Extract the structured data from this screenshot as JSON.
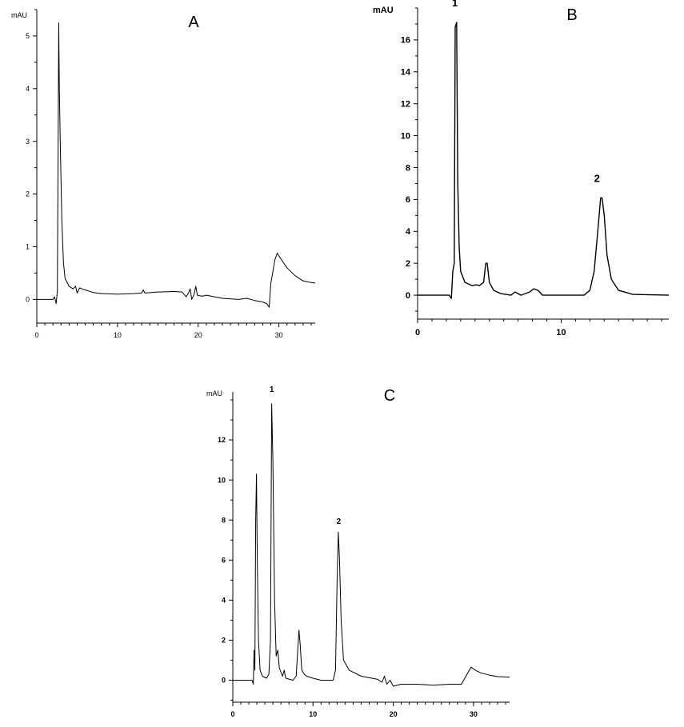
{
  "chart_data": [
    {
      "panel_label": "A",
      "type": "line",
      "ylabel": "mAU",
      "xlim": [
        0,
        34.5
      ],
      "ylim": [
        -0.45,
        5.5
      ],
      "x_ticks": [
        0,
        10,
        20,
        30
      ],
      "y_ticks": [
        0,
        1,
        2,
        3,
        4,
        5
      ],
      "peak_labels": [],
      "series": [
        {
          "points": [
            [
              0,
              0
            ],
            [
              2,
              0
            ],
            [
              2.2,
              0.05
            ],
            [
              2.4,
              -0.08
            ],
            [
              2.55,
              0.15
            ],
            [
              2.65,
              3.0
            ],
            [
              2.72,
              5.25
            ],
            [
              2.8,
              4.0
            ],
            [
              2.9,
              3.0
            ],
            [
              3.1,
              1.5
            ],
            [
              3.3,
              0.7
            ],
            [
              3.5,
              0.4
            ],
            [
              4.0,
              0.25
            ],
            [
              4.5,
              0.2
            ],
            [
              4.8,
              0.25
            ],
            [
              5.0,
              0.12
            ],
            [
              5.3,
              0.22
            ],
            [
              5.6,
              0.2
            ],
            [
              6,
              0.18
            ],
            [
              7,
              0.13
            ],
            [
              8,
              0.11
            ],
            [
              10,
              0.1
            ],
            [
              12,
              0.11
            ],
            [
              13,
              0.12
            ],
            [
              13.2,
              0.18
            ],
            [
              13.4,
              0.12
            ],
            [
              15,
              0.14
            ],
            [
              17,
              0.15
            ],
            [
              18,
              0.14
            ],
            [
              18.5,
              0.05
            ],
            [
              18.8,
              0.12
            ],
            [
              19,
              0.2
            ],
            [
              19.2,
              0.0
            ],
            [
              19.5,
              0.1
            ],
            [
              19.7,
              0.25
            ],
            [
              19.9,
              0.08
            ],
            [
              20.5,
              0.06
            ],
            [
              21,
              0.08
            ],
            [
              23,
              0.02
            ],
            [
              25,
              0.0
            ],
            [
              26,
              0.02
            ],
            [
              27,
              -0.02
            ],
            [
              28,
              -0.05
            ],
            [
              28.5,
              -0.08
            ],
            [
              28.8,
              -0.15
            ],
            [
              29.0,
              0.3
            ],
            [
              29.5,
              0.75
            ],
            [
              29.8,
              0.88
            ],
            [
              30.2,
              0.78
            ],
            [
              31,
              0.6
            ],
            [
              32,
              0.45
            ],
            [
              33,
              0.35
            ],
            [
              34,
              0.32
            ],
            [
              34.5,
              0.31
            ]
          ]
        }
      ]
    },
    {
      "panel_label": "B",
      "type": "line",
      "ylabel": "mAU",
      "xlim": [
        0,
        17.5
      ],
      "ylim": [
        -1.5,
        18
      ],
      "x_ticks": [
        0,
        10
      ],
      "y_ticks": [
        0,
        2,
        4,
        6,
        8,
        10,
        12,
        14,
        16
      ],
      "peak_labels": [
        {
          "text": "1",
          "x": 2.6,
          "y": 18.1
        },
        {
          "text": "2",
          "x": 12.5,
          "y": 7.1
        }
      ],
      "series": [
        {
          "points": [
            [
              0,
              0
            ],
            [
              2.2,
              0
            ],
            [
              2.35,
              -0.2
            ],
            [
              2.45,
              1.5
            ],
            [
              2.55,
              2.0
            ],
            [
              2.62,
              16.8
            ],
            [
              2.72,
              17.1
            ],
            [
              2.8,
              7.0
            ],
            [
              2.9,
              3.0
            ],
            [
              3.0,
              1.5
            ],
            [
              3.3,
              0.8
            ],
            [
              3.8,
              0.6
            ],
            [
              4.1,
              0.65
            ],
            [
              4.3,
              0.6
            ],
            [
              4.6,
              0.8
            ],
            [
              4.75,
              2.0
            ],
            [
              4.85,
              2.0
            ],
            [
              5.0,
              0.8
            ],
            [
              5.3,
              0.3
            ],
            [
              5.8,
              0.1
            ],
            [
              6.5,
              0.0
            ],
            [
              6.8,
              0.2
            ],
            [
              7.2,
              0.0
            ],
            [
              7.8,
              0.2
            ],
            [
              8.1,
              0.4
            ],
            [
              8.4,
              0.3
            ],
            [
              8.7,
              0.0
            ],
            [
              11,
              0.0
            ],
            [
              11.6,
              0.0
            ],
            [
              12.0,
              0.3
            ],
            [
              12.3,
              1.5
            ],
            [
              12.55,
              4.0
            ],
            [
              12.75,
              6.1
            ],
            [
              12.85,
              6.1
            ],
            [
              13.0,
              5.0
            ],
            [
              13.2,
              2.5
            ],
            [
              13.5,
              1.0
            ],
            [
              14.0,
              0.3
            ],
            [
              15,
              0.05
            ],
            [
              17.5,
              0.0
            ]
          ]
        }
      ]
    },
    {
      "panel_label": "C",
      "type": "line",
      "ylabel": "mAU",
      "xlim": [
        0,
        34.5
      ],
      "ylim": [
        -1.1,
        14.4
      ],
      "x_ticks": [
        0,
        10,
        20,
        30
      ],
      "y_ticks": [
        0,
        2,
        4,
        6,
        8,
        10,
        12
      ],
      "peak_labels": [
        {
          "text": "1",
          "x": 4.85,
          "y": 14.4
        },
        {
          "text": "2",
          "x": 13.2,
          "y": 7.8
        }
      ],
      "series": [
        {
          "points": [
            [
              0,
              0
            ],
            [
              2.4,
              0
            ],
            [
              2.55,
              -0.2
            ],
            [
              2.65,
              1.5
            ],
            [
              2.75,
              0.5
            ],
            [
              2.85,
              8.0
            ],
            [
              2.95,
              10.3
            ],
            [
              3.05,
              6.0
            ],
            [
              3.2,
              2.0
            ],
            [
              3.4,
              0.5
            ],
            [
              3.7,
              0.2
            ],
            [
              4.2,
              0.1
            ],
            [
              4.5,
              0.3
            ],
            [
              4.7,
              2.0
            ],
            [
              4.85,
              13.8
            ],
            [
              5.0,
              11.0
            ],
            [
              5.2,
              4.0
            ],
            [
              5.4,
              1.2
            ],
            [
              5.6,
              1.5
            ],
            [
              5.8,
              0.6
            ],
            [
              6.2,
              0.2
            ],
            [
              6.4,
              0.5
            ],
            [
              6.6,
              0.1
            ],
            [
              7.5,
              0.0
            ],
            [
              7.9,
              0.2
            ],
            [
              8.1,
              1.5
            ],
            [
              8.25,
              2.5
            ],
            [
              8.4,
              1.8
            ],
            [
              8.6,
              0.5
            ],
            [
              8.9,
              0.3
            ],
            [
              9.2,
              0.2
            ],
            [
              10,
              0.1
            ],
            [
              11,
              0.0
            ],
            [
              12.5,
              0.0
            ],
            [
              12.8,
              0.5
            ],
            [
              13.0,
              5.0
            ],
            [
              13.15,
              7.4
            ],
            [
              13.3,
              6.0
            ],
            [
              13.5,
              3.0
            ],
            [
              13.8,
              1.0
            ],
            [
              14.5,
              0.5
            ],
            [
              16,
              0.2
            ],
            [
              18,
              0.05
            ],
            [
              18.6,
              -0.1
            ],
            [
              18.9,
              0.2
            ],
            [
              19.2,
              -0.2
            ],
            [
              19.6,
              0.0
            ],
            [
              20,
              -0.3
            ],
            [
              21,
              -0.2
            ],
            [
              23,
              -0.2
            ],
            [
              25,
              -0.25
            ],
            [
              27,
              -0.2
            ],
            [
              28.5,
              -0.2
            ],
            [
              29.2,
              0.3
            ],
            [
              29.7,
              0.65
            ],
            [
              30.2,
              0.5
            ],
            [
              31,
              0.35
            ],
            [
              32,
              0.25
            ],
            [
              33,
              0.18
            ],
            [
              34.5,
              0.15
            ]
          ]
        }
      ]
    }
  ]
}
